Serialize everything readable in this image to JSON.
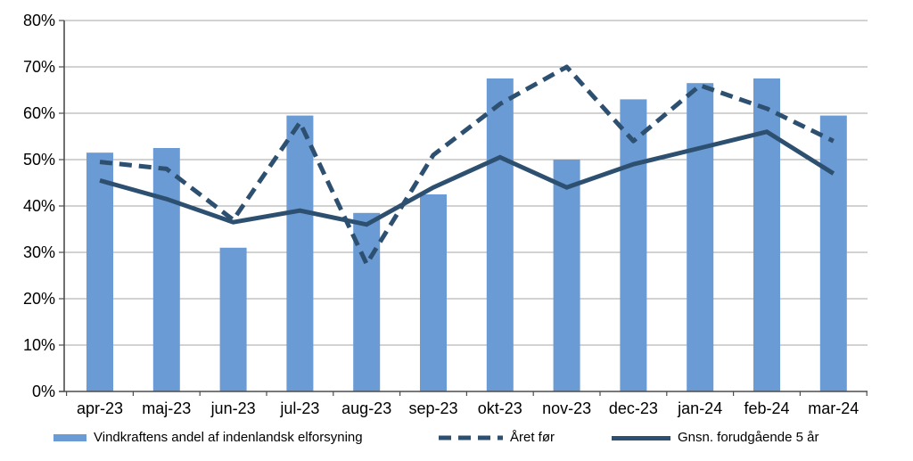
{
  "chart_data": {
    "type": "bar",
    "subtype": "bar-line-combo",
    "title": "",
    "xlabel": "",
    "ylabel": "",
    "ylim": [
      0,
      80
    ],
    "ytick_step": 10,
    "y_tick_labels": [
      "0%",
      "10%",
      "20%",
      "30%",
      "40%",
      "50%",
      "60%",
      "70%",
      "80%"
    ],
    "grid": true,
    "legend_position": "bottom",
    "categories": [
      "apr-23",
      "maj-23",
      "jun-23",
      "jul-23",
      "aug-23",
      "sep-23",
      "okt-23",
      "nov-23",
      "dec-23",
      "jan-24",
      "feb-24",
      "mar-24"
    ],
    "series": [
      {
        "name": "Vindkraftens andel af indenlandsk elforsyning",
        "type": "bar",
        "style": "solid-fill",
        "color": "#6A9BD5",
        "values": [
          51.5,
          52.5,
          31,
          59.5,
          38.5,
          42.5,
          67.5,
          50,
          63,
          66.5,
          67.5,
          59.5
        ]
      },
      {
        "name": "Året før",
        "type": "line",
        "style": "dashed",
        "color": "#2E5070",
        "values": [
          49.5,
          48,
          37,
          58,
          27.5,
          51,
          62,
          70,
          54,
          66,
          61,
          54
        ]
      },
      {
        "name": "Gnsn. forudgående 5 år",
        "type": "line",
        "style": "solid",
        "color": "#2E5070",
        "values": [
          45.5,
          41.5,
          36.5,
          39,
          36,
          44,
          50.5,
          44,
          49,
          52.5,
          56,
          47
        ]
      }
    ]
  },
  "colors": {
    "background": "#FFFFFF",
    "bar": "#6A9BD5",
    "line": "#2E5070",
    "gridline": "#A6A6A6",
    "axis": "#4D4D4D",
    "text": "#000000"
  }
}
